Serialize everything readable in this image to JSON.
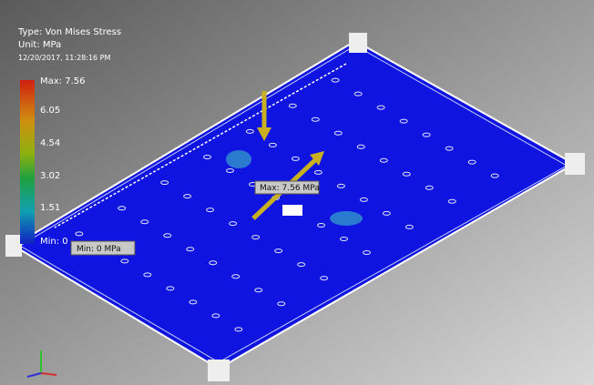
{
  "legend": {
    "type": "Type: Von Mises Stress",
    "unit": "Unit: MPa",
    "timestamp": "12/20/2017, 11:28:16 PM",
    "labels": [
      "Max: 7.56",
      "6.05",
      "4.54",
      "3.02",
      "1.51",
      "Min: 0"
    ]
  },
  "probes": {
    "max": "Max: 7.56 MPa",
    "min": "Min: 0 MPa"
  }
}
